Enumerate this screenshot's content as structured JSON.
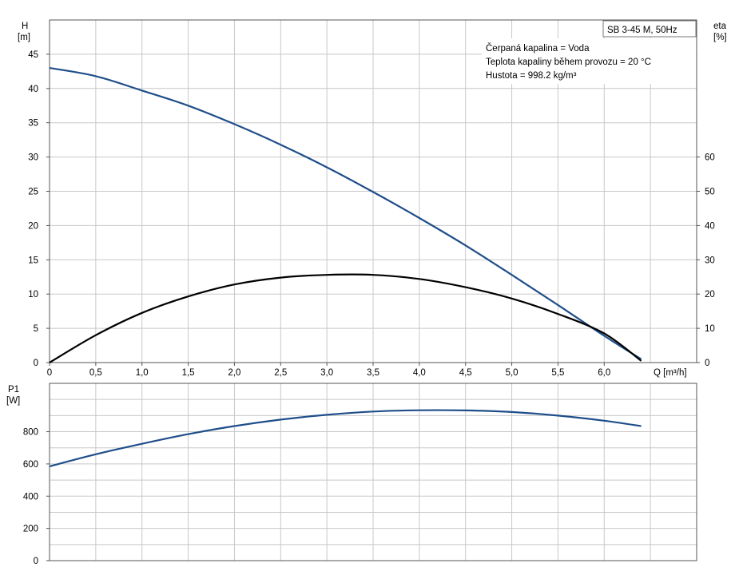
{
  "chart_data": [
    {
      "type": "line",
      "panel": "head-efficiency",
      "title": "SB 3-45 M, 50Hz",
      "annotations": [
        "Čerpaná kapalina = Voda",
        "Teplota kapaliny během provozu = 20 °C",
        "Hustota = 998.2 kg/m³"
      ],
      "xlabel": "Q [m³/h]",
      "xlim": [
        0,
        7
      ],
      "xticks": [
        0,
        0.5,
        1.0,
        1.5,
        2.0,
        2.5,
        3.0,
        3.5,
        4.0,
        4.5,
        5.0,
        5.5,
        6.0
      ],
      "xtick_labels": [
        "0",
        "0,5",
        "1,0",
        "1,5",
        "2,0",
        "2,5",
        "3,0",
        "3,5",
        "4,0",
        "4,5",
        "5,0",
        "5,5",
        "6,0"
      ],
      "ylabel_left_line1": "H",
      "ylabel_left_line2": "[m]",
      "ylim_left": [
        0,
        50
      ],
      "yticks_left": [
        0,
        5,
        10,
        15,
        20,
        25,
        30,
        35,
        40,
        45
      ],
      "ylabel_right_line1": "eta",
      "ylabel_right_line2": "[%]",
      "ylim_right": [
        0,
        100
      ],
      "yticks_right": [
        0,
        10,
        20,
        30,
        40,
        50,
        60
      ],
      "grid": true,
      "series": [
        {
          "axis": "left",
          "color": "#1f4e8a",
          "x": [
            0,
            0.5,
            1.0,
            1.5,
            2.0,
            2.5,
            3.0,
            3.5,
            4.0,
            4.5,
            5.0,
            5.5,
            6.0,
            6.4
          ],
          "y": [
            43,
            41.8,
            39.7,
            37.5,
            34.8,
            31.8,
            28.5,
            24.9,
            21.1,
            17.1,
            12.8,
            8.4,
            3.9,
            0.5
          ]
        },
        {
          "axis": "right",
          "color": "#000000",
          "x": [
            0,
            0.5,
            1.0,
            1.5,
            2.0,
            2.5,
            3.0,
            3.5,
            4.0,
            4.5,
            5.0,
            5.5,
            6.0,
            6.4
          ],
          "y": [
            0,
            8,
            14.5,
            19.3,
            22.8,
            24.8,
            25.6,
            25.6,
            24.4,
            22,
            18.7,
            14.2,
            8.5,
            0.5
          ]
        }
      ]
    },
    {
      "type": "line",
      "panel": "power",
      "ylabel_line1": "P1",
      "ylabel_line2": "[W]",
      "ylim": [
        0,
        1100
      ],
      "yticks": [
        0,
        200,
        400,
        600,
        800
      ],
      "xlim": [
        0,
        7
      ],
      "grid": true,
      "series": [
        {
          "color": "#1f4e8a",
          "x": [
            0,
            0.5,
            1.0,
            1.5,
            2.0,
            2.5,
            3.0,
            3.5,
            4.0,
            4.5,
            5.0,
            5.5,
            6.0,
            6.4
          ],
          "y": [
            585,
            660,
            725,
            785,
            835,
            875,
            905,
            925,
            933,
            932,
            922,
            900,
            868,
            835
          ]
        }
      ]
    }
  ]
}
